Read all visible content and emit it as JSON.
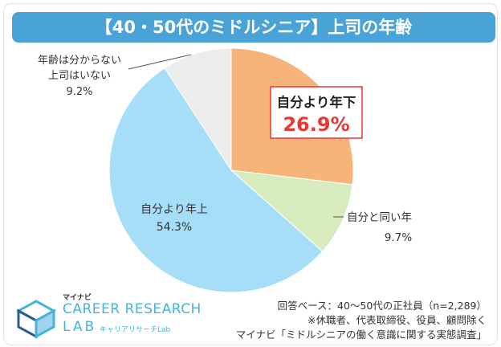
{
  "title": "【40・50代のミドルシニア】上司の年齢",
  "chart_data": {
    "type": "pie",
    "start_angle_deg": 0,
    "direction": "clockwise",
    "slices": [
      {
        "label": "自分より年下",
        "percent_label": "26.9%",
        "value": 26.9,
        "color": "#f7b47a",
        "highlight": true
      },
      {
        "label": "自分と同い年",
        "percent_label": "9.7%",
        "value": 9.7,
        "color": "#d6ecbf"
      },
      {
        "label": "自分より年上",
        "percent_label": "54.3%",
        "value": 54.3,
        "color": "#a6def8"
      },
      {
        "label_lines": [
          "年齢は分からない",
          "上司はいない"
        ],
        "percent_label": "9.2%",
        "value": 9.2,
        "color": "#ececec"
      }
    ]
  },
  "footer": {
    "base": "回答ベース：40～50代の正社員（n=2,289）",
    "note": "※休職者、代表取締役、役員、顧問除く",
    "source": "マイナビ「ミドルシニアの働く意識に関する実態調査」"
  },
  "brand": {
    "small": "マイナビ",
    "main": "CAREER RESEARCH",
    "lab": "LAB",
    "sub": "キャリアリサーチLab"
  },
  "colors": {
    "title_bg": "#49a3d6",
    "highlight_border": "#e53935",
    "highlight_text": "#e53935",
    "brand": "#46b3d9"
  }
}
